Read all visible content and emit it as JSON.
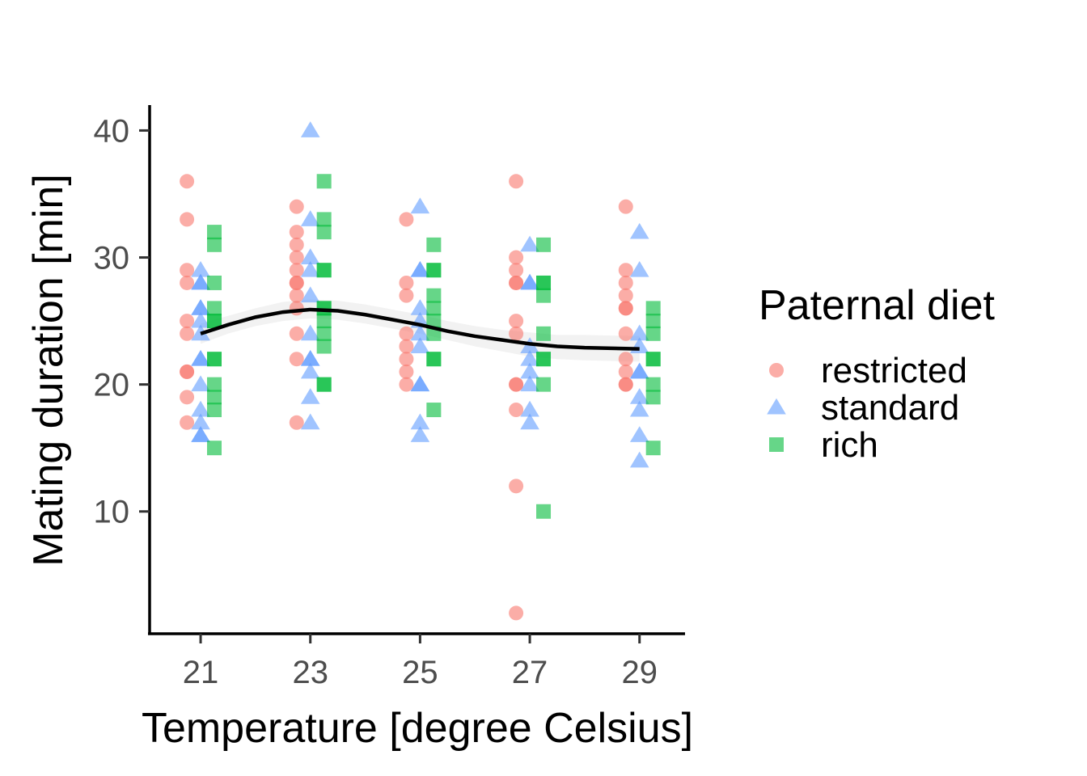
{
  "chart_data": {
    "type": "scatter",
    "xlabel": "Temperature [degree Celsius]",
    "ylabel": "Mating duration [min]",
    "x_ticks": [
      "21",
      "23",
      "25",
      "27",
      "29"
    ],
    "y_ticks": [
      "10",
      "20",
      "30",
      "40"
    ],
    "xlim": [
      20.1,
      29.8
    ],
    "ylim": [
      0.5,
      42
    ],
    "legend": {
      "title": "Paternal diet",
      "placement": "right",
      "entries": [
        "restricted",
        "standard",
        "rich"
      ]
    },
    "colors": {
      "restricted": "#F8766D",
      "standard": "#619CFF",
      "rich": "#00BA38",
      "trend": "#000000",
      "ribbon": "#d9d9d9"
    },
    "x_offsets_by_series": {
      "restricted": -0.25,
      "standard": 0,
      "rich": 0.25
    },
    "series": [
      {
        "name": "restricted",
        "shape": "circle",
        "points": [
          {
            "x": 21,
            "y": 36
          },
          {
            "x": 21,
            "y": 33
          },
          {
            "x": 21,
            "y": 29
          },
          {
            "x": 21,
            "y": 28
          },
          {
            "x": 21,
            "y": 25
          },
          {
            "x": 21,
            "y": 24
          },
          {
            "x": 21,
            "y": 21
          },
          {
            "x": 21,
            "y": 21
          },
          {
            "x": 21,
            "y": 19
          },
          {
            "x": 21,
            "y": 17
          },
          {
            "x": 23,
            "y": 34
          },
          {
            "x": 23,
            "y": 32
          },
          {
            "x": 23,
            "y": 31
          },
          {
            "x": 23,
            "y": 30
          },
          {
            "x": 23,
            "y": 29
          },
          {
            "x": 23,
            "y": 28
          },
          {
            "x": 23,
            "y": 28
          },
          {
            "x": 23,
            "y": 27
          },
          {
            "x": 23,
            "y": 26
          },
          {
            "x": 23,
            "y": 24
          },
          {
            "x": 23,
            "y": 22
          },
          {
            "x": 23,
            "y": 17
          },
          {
            "x": 25,
            "y": 33
          },
          {
            "x": 25,
            "y": 28
          },
          {
            "x": 25,
            "y": 27
          },
          {
            "x": 25,
            "y": 24
          },
          {
            "x": 25,
            "y": 23
          },
          {
            "x": 25,
            "y": 22
          },
          {
            "x": 25,
            "y": 21
          },
          {
            "x": 25,
            "y": 20
          },
          {
            "x": 27,
            "y": 36
          },
          {
            "x": 27,
            "y": 30
          },
          {
            "x": 27,
            "y": 29
          },
          {
            "x": 27,
            "y": 28
          },
          {
            "x": 27,
            "y": 28
          },
          {
            "x": 27,
            "y": 25
          },
          {
            "x": 27,
            "y": 24
          },
          {
            "x": 27,
            "y": 20
          },
          {
            "x": 27,
            "y": 20
          },
          {
            "x": 27,
            "y": 18
          },
          {
            "x": 27,
            "y": 12
          },
          {
            "x": 27,
            "y": 2
          },
          {
            "x": 29,
            "y": 34
          },
          {
            "x": 29,
            "y": 29
          },
          {
            "x": 29,
            "y": 28
          },
          {
            "x": 29,
            "y": 27
          },
          {
            "x": 29,
            "y": 26
          },
          {
            "x": 29,
            "y": 26
          },
          {
            "x": 29,
            "y": 24
          },
          {
            "x": 29,
            "y": 22
          },
          {
            "x": 29,
            "y": 21
          },
          {
            "x": 29,
            "y": 20
          },
          {
            "x": 29,
            "y": 20
          }
        ]
      },
      {
        "name": "standard",
        "shape": "triangle",
        "points": [
          {
            "x": 21,
            "y": 29
          },
          {
            "x": 21,
            "y": 28
          },
          {
            "x": 21,
            "y": 28
          },
          {
            "x": 21,
            "y": 26
          },
          {
            "x": 21,
            "y": 26
          },
          {
            "x": 21,
            "y": 25
          },
          {
            "x": 21,
            "y": 24
          },
          {
            "x": 21,
            "y": 22
          },
          {
            "x": 21,
            "y": 22
          },
          {
            "x": 21,
            "y": 20
          },
          {
            "x": 21,
            "y": 18
          },
          {
            "x": 21,
            "y": 17
          },
          {
            "x": 21,
            "y": 16
          },
          {
            "x": 21,
            "y": 16
          },
          {
            "x": 23,
            "y": 40
          },
          {
            "x": 23,
            "y": 33
          },
          {
            "x": 23,
            "y": 30
          },
          {
            "x": 23,
            "y": 29
          },
          {
            "x": 23,
            "y": 27
          },
          {
            "x": 23,
            "y": 24
          },
          {
            "x": 23,
            "y": 22
          },
          {
            "x": 23,
            "y": 22
          },
          {
            "x": 23,
            "y": 21
          },
          {
            "x": 23,
            "y": 19
          },
          {
            "x": 23,
            "y": 17
          },
          {
            "x": 25,
            "y": 34
          },
          {
            "x": 25,
            "y": 29
          },
          {
            "x": 25,
            "y": 29
          },
          {
            "x": 25,
            "y": 26
          },
          {
            "x": 25,
            "y": 25
          },
          {
            "x": 25,
            "y": 24
          },
          {
            "x": 25,
            "y": 23
          },
          {
            "x": 25,
            "y": 20
          },
          {
            "x": 25,
            "y": 20
          },
          {
            "x": 25,
            "y": 17
          },
          {
            "x": 25,
            "y": 16
          },
          {
            "x": 27,
            "y": 31
          },
          {
            "x": 27,
            "y": 28
          },
          {
            "x": 27,
            "y": 28
          },
          {
            "x": 27,
            "y": 23
          },
          {
            "x": 27,
            "y": 22
          },
          {
            "x": 27,
            "y": 21
          },
          {
            "x": 27,
            "y": 20
          },
          {
            "x": 27,
            "y": 18
          },
          {
            "x": 27,
            "y": 17
          },
          {
            "x": 29,
            "y": 32
          },
          {
            "x": 29,
            "y": 29
          },
          {
            "x": 29,
            "y": 24
          },
          {
            "x": 29,
            "y": 23
          },
          {
            "x": 29,
            "y": 21
          },
          {
            "x": 29,
            "y": 21
          },
          {
            "x": 29,
            "y": 19
          },
          {
            "x": 29,
            "y": 18
          },
          {
            "x": 29,
            "y": 16
          },
          {
            "x": 29,
            "y": 14
          }
        ]
      },
      {
        "name": "rich",
        "shape": "square",
        "points": [
          {
            "x": 21,
            "y": 32
          },
          {
            "x": 21,
            "y": 31
          },
          {
            "x": 21,
            "y": 28
          },
          {
            "x": 21,
            "y": 26
          },
          {
            "x": 21,
            "y": 25
          },
          {
            "x": 21,
            "y": 25
          },
          {
            "x": 21,
            "y": 22
          },
          {
            "x": 21,
            "y": 22
          },
          {
            "x": 21,
            "y": 20
          },
          {
            "x": 21,
            "y": 19
          },
          {
            "x": 21,
            "y": 18
          },
          {
            "x": 21,
            "y": 15
          },
          {
            "x": 23,
            "y": 36
          },
          {
            "x": 23,
            "y": 33
          },
          {
            "x": 23,
            "y": 32
          },
          {
            "x": 23,
            "y": 29
          },
          {
            "x": 23,
            "y": 29
          },
          {
            "x": 23,
            "y": 26
          },
          {
            "x": 23,
            "y": 26
          },
          {
            "x": 23,
            "y": 25
          },
          {
            "x": 23,
            "y": 24
          },
          {
            "x": 23,
            "y": 23
          },
          {
            "x": 23,
            "y": 20
          },
          {
            "x": 23,
            "y": 20
          },
          {
            "x": 25,
            "y": 31
          },
          {
            "x": 25,
            "y": 29
          },
          {
            "x": 25,
            "y": 29
          },
          {
            "x": 25,
            "y": 27
          },
          {
            "x": 25,
            "y": 26
          },
          {
            "x": 25,
            "y": 25
          },
          {
            "x": 25,
            "y": 24
          },
          {
            "x": 25,
            "y": 22
          },
          {
            "x": 25,
            "y": 22
          },
          {
            "x": 25,
            "y": 18
          },
          {
            "x": 27,
            "y": 31
          },
          {
            "x": 27,
            "y": 28
          },
          {
            "x": 27,
            "y": 28
          },
          {
            "x": 27,
            "y": 27
          },
          {
            "x": 27,
            "y": 24
          },
          {
            "x": 27,
            "y": 22
          },
          {
            "x": 27,
            "y": 22
          },
          {
            "x": 27,
            "y": 20
          },
          {
            "x": 27,
            "y": 10
          },
          {
            "x": 29,
            "y": 26
          },
          {
            "x": 29,
            "y": 25
          },
          {
            "x": 29,
            "y": 24
          },
          {
            "x": 29,
            "y": 22
          },
          {
            "x": 29,
            "y": 22
          },
          {
            "x": 29,
            "y": 20
          },
          {
            "x": 29,
            "y": 19
          },
          {
            "x": 29,
            "y": 15
          }
        ]
      }
    ],
    "trend_line": {
      "x": [
        21,
        21.5,
        22,
        22.5,
        23,
        23.5,
        24,
        24.5,
        25,
        25.5,
        26,
        26.5,
        27,
        27.5,
        28,
        28.5,
        29
      ],
      "y": [
        24.0,
        24.7,
        25.3,
        25.7,
        25.9,
        25.8,
        25.5,
        25.1,
        24.7,
        24.2,
        23.8,
        23.5,
        23.2,
        23.0,
        22.9,
        22.85,
        22.8
      ],
      "ci_lower": [
        23.2,
        24.0,
        24.6,
        25.0,
        25.2,
        25.1,
        24.8,
        24.4,
        24.0,
        23.5,
        23.0,
        22.6,
        22.2,
        22.0,
        21.9,
        21.85,
        21.8
      ],
      "ci_upper": [
        24.8,
        25.4,
        26.0,
        26.5,
        26.7,
        26.6,
        26.3,
        25.9,
        25.5,
        25.0,
        24.6,
        24.3,
        24.1,
        23.9,
        23.9,
        23.85,
        23.8
      ]
    }
  }
}
